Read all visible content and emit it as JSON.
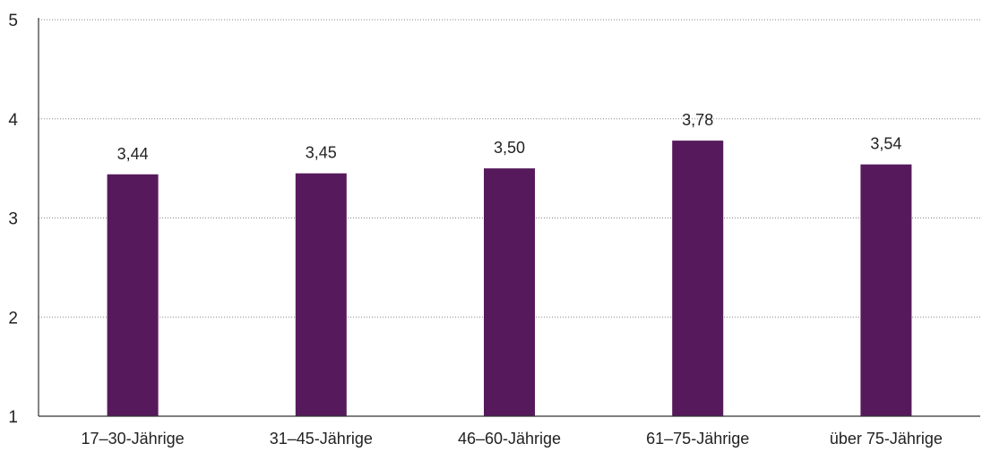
{
  "chart_data": {
    "type": "bar",
    "title": "",
    "xlabel": "",
    "ylabel": "",
    "categories": [
      "17–30-Jährige",
      "31–45-Jährige",
      "46–60-Jährige",
      "61–75-Jährige",
      "über 75-Jährige"
    ],
    "values": [
      3.44,
      3.45,
      3.5,
      3.78,
      3.54
    ],
    "value_labels": [
      "3,44",
      "3,45",
      "3,50",
      "3,78",
      "3,54"
    ],
    "ylim": [
      1,
      5
    ],
    "yticks": [
      1,
      2,
      3,
      4,
      5
    ],
    "ytick_labels": [
      "1",
      "2",
      "3",
      "4",
      "5"
    ],
    "grid": true,
    "bar_color": "#561a5c",
    "grid_color": "#888888"
  }
}
